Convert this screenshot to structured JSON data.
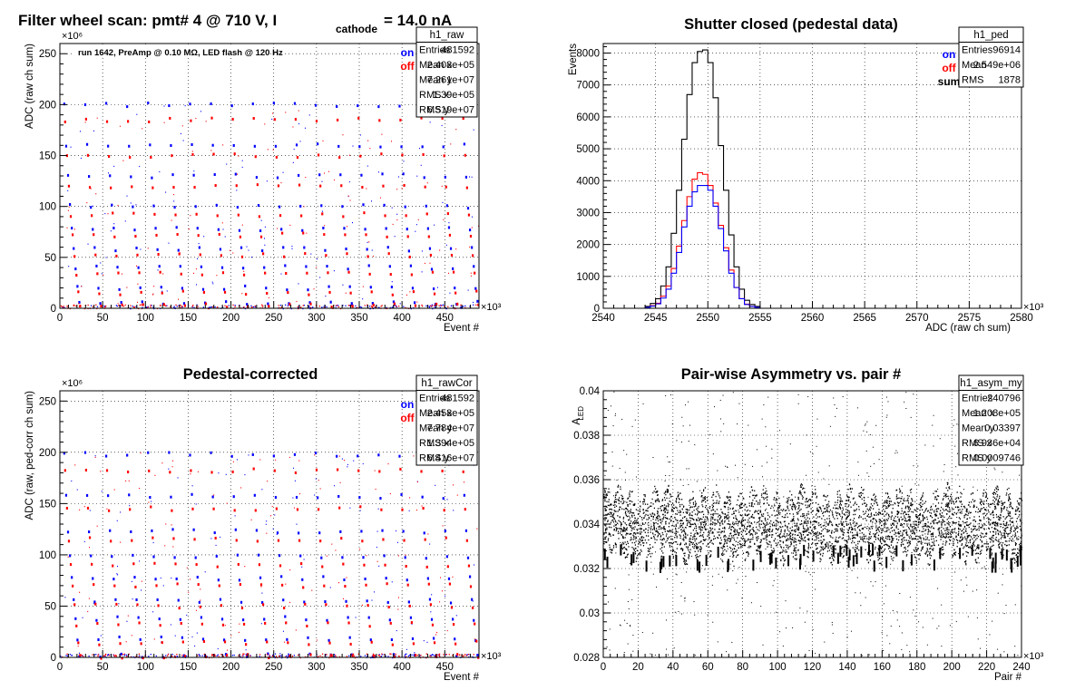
{
  "page": {
    "title": "Filter wheel scan: pmt#   4 @   710 V, I",
    "title_subscript": "cathode",
    "title_tail": " = 14.0 nA"
  },
  "chart_data": [
    {
      "id": "raw",
      "type": "scatter",
      "title": "",
      "xlabel": "Event #",
      "ylabel": "ADC (raw ch sum)",
      "xlim": [
        0,
        490
      ],
      "ylim": [
        0,
        260
      ],
      "x_exponent": "×10³",
      "y_exponent": "×10⁶",
      "xticks": [
        0,
        50,
        100,
        150,
        200,
        250,
        300,
        350,
        400,
        450
      ],
      "yticks": [
        0,
        50,
        100,
        150,
        200,
        250
      ],
      "grid": true,
      "annotation": "run 1642, PreAmp @ 0.10 MΩ, LED flash @  120 Hz",
      "legend": [
        {
          "label": "on",
          "color": "#0000ff"
        },
        {
          "label": "off",
          "color": "#ff0000"
        }
      ],
      "stats": {
        "name": "h1_raw",
        "rows": [
          [
            "Entries",
            "481592"
          ],
          [
            "Mean x",
            "2.408e+05"
          ],
          [
            "Mean y",
            "7.261e+07"
          ],
          [
            "RMS x",
            "1.39e+05"
          ],
          [
            "RMS y",
            "6.519e+07"
          ]
        ]
      },
      "series": [
        {
          "name": "on",
          "color": "#0000ff",
          "levels": [
            200,
            160,
            130,
            100,
            78,
            58,
            40,
            20,
            5
          ]
        },
        {
          "name": "off",
          "color": "#ff0000",
          "levels": [
            185,
            150,
            120,
            92,
            72,
            52,
            34,
            15,
            3
          ]
        }
      ]
    },
    {
      "id": "ped",
      "type": "step",
      "title": "Shutter closed (pedestal data)",
      "xlabel": "ADC (raw ch sum)",
      "ylabel": "Events",
      "xlim": [
        2540,
        2580
      ],
      "ylim": [
        0,
        8300
      ],
      "x_exponent": "×10³",
      "xticks": [
        2540,
        2545,
        2550,
        2555,
        2560,
        2565,
        2570,
        2575,
        2580
      ],
      "yticks": [
        0,
        1000,
        2000,
        3000,
        4000,
        5000,
        6000,
        7000,
        8000
      ],
      "grid": true,
      "legend": [
        {
          "label": "on",
          "color": "#0000ff"
        },
        {
          "label": "off",
          "color": "#ff0000"
        },
        {
          "label": "sum",
          "color": "#000000"
        }
      ],
      "stats": {
        "name": "h1_ped",
        "rows": [
          [
            "Entries",
            "96914"
          ],
          [
            "Mean",
            "2.549e+06"
          ],
          [
            "RMS",
            "1878"
          ]
        ]
      },
      "bins": {
        "start": 2544,
        "width": 0.5,
        "sum": [
          60,
          150,
          300,
          700,
          1300,
          2350,
          3700,
          5300,
          6700,
          7700,
          8050,
          8100,
          7700,
          6600,
          5100,
          3700,
          2300,
          1300,
          600,
          250,
          120,
          60
        ],
        "off": [
          30,
          80,
          160,
          380,
          700,
          1250,
          1950,
          2750,
          3500,
          4050,
          4250,
          4200,
          3850,
          3300,
          2600,
          1900,
          1200,
          650,
          300,
          130,
          60,
          30
        ],
        "on": [
          30,
          70,
          140,
          320,
          600,
          1100,
          1750,
          2550,
          3200,
          3650,
          3850,
          3850,
          3700,
          3200,
          2500,
          1800,
          1100,
          650,
          300,
          120,
          60,
          30
        ]
      }
    },
    {
      "id": "rawCor",
      "type": "scatter",
      "title": "Pedestal-corrected",
      "xlabel": "Event #",
      "ylabel": "ADC (raw, ped-corr ch sum)",
      "xlim": [
        0,
        490
      ],
      "ylim": [
        0,
        260
      ],
      "x_exponent": "×10³",
      "y_exponent": "×10⁶",
      "xticks": [
        0,
        50,
        100,
        150,
        200,
        250,
        300,
        350,
        400,
        450
      ],
      "yticks": [
        0,
        50,
        100,
        150,
        200,
        250
      ],
      "grid": true,
      "legend": [
        {
          "label": "on",
          "color": "#0000ff"
        },
        {
          "label": "off",
          "color": "#ff0000"
        }
      ],
      "stats": {
        "name": "h1_rawCor",
        "rows": [
          [
            "Entries",
            "481592"
          ],
          [
            "Mean x",
            "2.458e+05"
          ],
          [
            "Mean y",
            "7.784e+07"
          ],
          [
            "RMS x",
            "1.394e+05"
          ],
          [
            "RMS y",
            "6.416e+07"
          ]
        ]
      },
      "series": [
        {
          "name": "on",
          "color": "#0000ff",
          "levels": [
            198,
            157,
            123,
            98,
            77,
            55,
            38,
            18,
            2
          ]
        },
        {
          "name": "off",
          "color": "#ff0000",
          "levels": [
            182,
            145,
            115,
            90,
            70,
            50,
            32,
            14,
            1
          ]
        }
      ]
    },
    {
      "id": "asym",
      "type": "scatter",
      "title": "Pair-wise Asymmetry vs. pair #",
      "xlabel": "Pair #",
      "ylabel": "A",
      "ylabel_sub": "LED",
      "xlim": [
        0,
        240
      ],
      "ylim": [
        0.028,
        0.04
      ],
      "x_exponent": "×10³",
      "xticks": [
        0,
        20,
        40,
        60,
        80,
        100,
        120,
        140,
        160,
        180,
        200,
        220,
        240
      ],
      "yticks": [
        0.028,
        0.03,
        0.032,
        0.034,
        0.036,
        0.038,
        0.04
      ],
      "ytick_labels": [
        "0.028",
        "0.03",
        "0.032",
        "0.034",
        "0.036",
        "0.038",
        "0.04"
      ],
      "grid": true,
      "stats": {
        "name": "h1_asym_my",
        "rows": [
          [
            "Entries",
            "240796"
          ],
          [
            "Mean x",
            "1.208e+05"
          ],
          [
            "Mean y",
            "0.03397"
          ],
          [
            "RMS x",
            "6.936e+04"
          ],
          [
            "RMS y",
            "0.0009746"
          ]
        ]
      },
      "band": {
        "center": 0.034,
        "halfwidth": 0.0013,
        "color": "#000000"
      }
    }
  ]
}
